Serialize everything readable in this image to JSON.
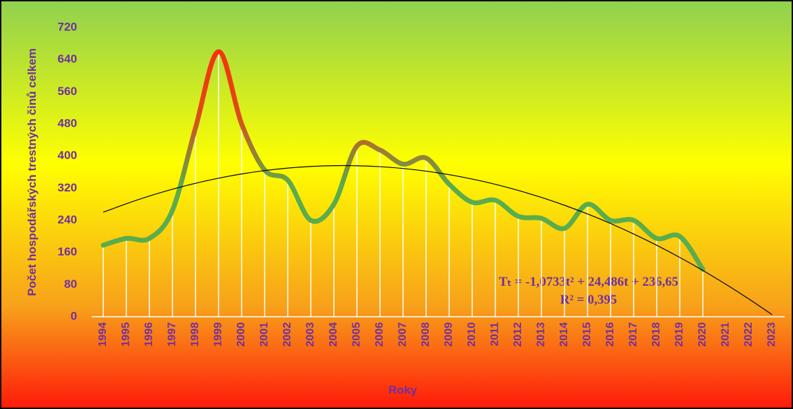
{
  "chart_data": {
    "type": "line",
    "y_axis_label": "Počet hospodářských trestných činů celkem",
    "x_axis_label": "Roky",
    "categories": [
      "1994",
      "1995",
      "1996",
      "1997",
      "1998",
      "1999",
      "2000",
      "2001",
      "2002",
      "2003",
      "2004",
      "2005",
      "2006",
      "2007",
      "2008",
      "2009",
      "2010",
      "2011",
      "2012",
      "2013",
      "2014",
      "2015",
      "2016",
      "2017",
      "2018",
      "2019",
      "2020",
      "2021",
      "2022",
      "2023"
    ],
    "series": [
      {
        "color": "#5aac4c",
        "values": [
          178,
          195,
          195,
          265,
          470,
          660,
          480,
          365,
          340,
          240,
          280,
          425,
          415,
          380,
          395,
          330,
          285,
          290,
          250,
          245,
          220,
          280,
          240,
          240,
          195,
          200,
          118,
          null,
          null,
          null
        ]
      },
      {
        "color": "#000000",
        "values": [
          260.1,
          281.3,
          300.5,
          317.4,
          332.3,
          344.9,
          355.5,
          363.9,
          370.1,
          374.2,
          376.1,
          375.9,
          373.6,
          369.1,
          362.5,
          353.7,
          342.7,
          329.7,
          314.4,
          297.1,
          277.5,
          255.9,
          232.1,
          206.1,
          178.0,
          147.7,
          115.3,
          80.8,
          44.1,
          5.3
        ]
      }
    ],
    "annotations": [
      "Tₜ = -1,0733t² + 24,486t + 236,65",
      "R² = 0,395"
    ],
    "ylim": [
      0,
      720
    ],
    "yticks": [
      0,
      80,
      160,
      240,
      320,
      400,
      480,
      560,
      640,
      720
    ]
  }
}
